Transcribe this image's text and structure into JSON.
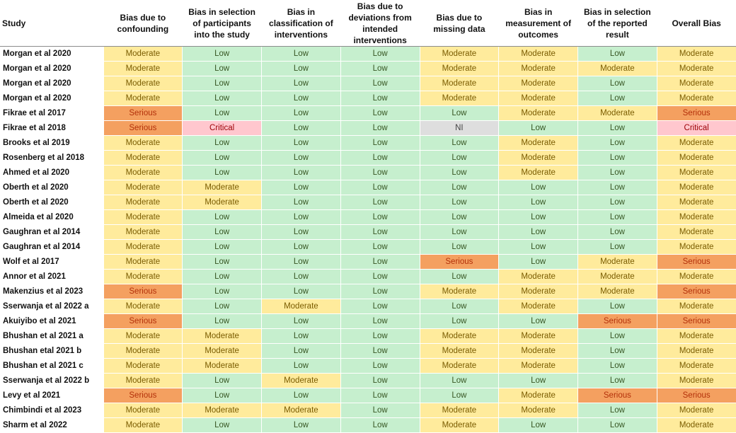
{
  "table": {
    "headers": [
      "Study",
      "Bias due to confounding",
      "Bias in selection of participants into the study",
      "Bias in classification of interventions",
      "Bias due to deviations from intended interventions",
      "Bias due to missing data",
      "Bias in measurement of outcomes",
      "Bias in selection of the reported result",
      "Overall Bias"
    ],
    "rows": [
      {
        "study": "Morgan et al 2020",
        "ratings": [
          "Moderate",
          "Low",
          "Low",
          "Low",
          "Moderate",
          "Moderate",
          "Low",
          "Moderate"
        ]
      },
      {
        "study": "Morgan et al 2020",
        "ratings": [
          "Moderate",
          "Low",
          "Low",
          "Low",
          "Moderate",
          "Moderate",
          "Moderate",
          "Moderate"
        ]
      },
      {
        "study": "Morgan et al 2020",
        "ratings": [
          "Moderate",
          "Low",
          "Low",
          "Low",
          "Moderate",
          "Moderate",
          "Low",
          "Moderate"
        ]
      },
      {
        "study": "Morgan et al 2020",
        "ratings": [
          "Moderate",
          "Low",
          "Low",
          "Low",
          "Moderate",
          "Moderate",
          "Low",
          "Moderate"
        ]
      },
      {
        "study": "Fikrae et al 2017",
        "ratings": [
          "Serious",
          "Low",
          "Low",
          "Low",
          "Low",
          "Moderate",
          "Moderate",
          "Serious"
        ]
      },
      {
        "study": "Fikrae et al 2018",
        "ratings": [
          "Serious",
          "Critical",
          "Low",
          "Low",
          "NI",
          "Low",
          "Low",
          "Critical"
        ]
      },
      {
        "study": "Brooks et al 2019",
        "ratings": [
          "Moderate",
          "Low",
          "Low",
          "Low",
          "Low",
          "Moderate",
          "Low",
          "Moderate"
        ]
      },
      {
        "study": "Rosenberg et al 2018",
        "ratings": [
          "Moderate",
          "Low",
          "Low",
          "Low",
          "Low",
          "Moderate",
          "Low",
          "Moderate"
        ]
      },
      {
        "study": "Ahmed et al 2020",
        "ratings": [
          "Moderate",
          "Low",
          "Low",
          "Low",
          "Low",
          "Moderate",
          "Low",
          "Moderate"
        ]
      },
      {
        "study": "Oberth et al 2020",
        "ratings": [
          "Moderate",
          "Moderate",
          "Low",
          "Low",
          "Low",
          "Low",
          "Low",
          "Moderate"
        ]
      },
      {
        "study": "Oberth et al 2020",
        "ratings": [
          "Moderate",
          "Moderate",
          "Low",
          "Low",
          "Low",
          "Low",
          "Low",
          "Moderate"
        ]
      },
      {
        "study": "Almeida et al 2020",
        "ratings": [
          "Moderate",
          "Low",
          "Low",
          "Low",
          "Low",
          "Low",
          "Low",
          "Moderate"
        ]
      },
      {
        "study": "Gaughran et al 2014",
        "ratings": [
          "Moderate",
          "Low",
          "Low",
          "Low",
          "Low",
          "Low",
          "Low",
          "Moderate"
        ]
      },
      {
        "study": "Gaughran et al 2014",
        "ratings": [
          "Moderate",
          "Low",
          "Low",
          "Low",
          "Low",
          "Low",
          "Low",
          "Moderate"
        ]
      },
      {
        "study": "Wolf et al 2017",
        "ratings": [
          "Moderate",
          "Low",
          "Low",
          "Low",
          "Serious",
          "Low",
          "Moderate",
          "Serious"
        ]
      },
      {
        "study": "Annor et al 2021",
        "ratings": [
          "Moderate",
          "Low",
          "Low",
          "Low",
          "Low",
          "Moderate",
          "Moderate",
          "Moderate"
        ]
      },
      {
        "study": "Makenzius et al 2023",
        "ratings": [
          "Serious",
          "Low",
          "Low",
          "Low",
          "Moderate",
          "Moderate",
          "Moderate",
          "Serious"
        ]
      },
      {
        "study": "Sserwanja et al 2022 a",
        "ratings": [
          "Moderate",
          "Low",
          "Moderate",
          "Low",
          "Low",
          "Moderate",
          "Low",
          "Moderate"
        ]
      },
      {
        "study": "Akuiyibo et al 2021",
        "ratings": [
          "Serious",
          "Low",
          "Low",
          "Low",
          "Low",
          "Low",
          "Serious",
          "Serious"
        ]
      },
      {
        "study": "Bhushan et al 2021 a",
        "ratings": [
          "Moderate",
          "Moderate",
          "Low",
          "Low",
          "Moderate",
          "Moderate",
          "Low",
          "Moderate"
        ]
      },
      {
        "study": "Bhushan etal 2021 b",
        "ratings": [
          "Moderate",
          "Moderate",
          "Low",
          "Low",
          "Moderate",
          "Moderate",
          "Low",
          "Moderate"
        ]
      },
      {
        "study": "Bhushan et al 2021 c",
        "ratings": [
          "Moderate",
          "Moderate",
          "Low",
          "Low",
          "Moderate",
          "Moderate",
          "Low",
          "Moderate"
        ]
      },
      {
        "study": "Sserwanja et al 2022 b",
        "ratings": [
          "Moderate",
          "Low",
          "Moderate",
          "Low",
          "Low",
          "Low",
          "Low",
          "Moderate"
        ]
      },
      {
        "study": "Levy et al 2021",
        "ratings": [
          "Serious",
          "Low",
          "Low",
          "Low",
          "Low",
          "Moderate",
          "Serious",
          "Serious"
        ]
      },
      {
        "study": "Chimbindi et al 2023",
        "ratings": [
          "Moderate",
          "Moderate",
          "Moderate",
          "Low",
          "Moderate",
          "Moderate",
          "Low",
          "Moderate"
        ]
      },
      {
        "study": "Sharm et al 2022",
        "ratings": [
          "Moderate",
          "Low",
          "Low",
          "Low",
          "Moderate",
          "Low",
          "Low",
          "Moderate"
        ]
      }
    ]
  },
  "colors": {
    "low_bg": "#c6efce",
    "moderate_bg": "#ffeb9c",
    "serious_bg": "#f4a060",
    "critical_bg": "#ffc7ce",
    "ni_bg": "#dedede"
  }
}
